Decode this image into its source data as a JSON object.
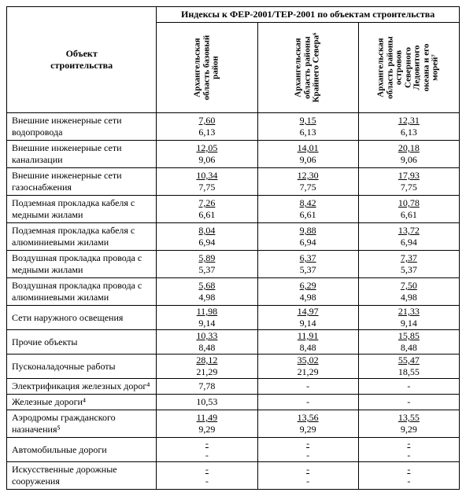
{
  "header": {
    "object_col": "Объект\nстроительства",
    "index_header": "Индексы к ФЕР-2001/ТЕР-2001 по объектам строительства",
    "cols": [
      "Архангельская\nобласть базовый\nрайон",
      "Архангельская\nобласть районы\nКрайнего Севера⁶",
      "Архангельская\nобласть районы\nостровов\nСеверного\nЛедовитого\nокеана и его\nморей⁷"
    ]
  },
  "rows": [
    {
      "name": "Внешние инженерные сети водопровода",
      "v": [
        [
          "7,60",
          "6,13"
        ],
        [
          "9,15",
          "6,13"
        ],
        [
          "12,31",
          "6,13"
        ]
      ]
    },
    {
      "name": "Внешние инженерные сети канализации",
      "v": [
        [
          "12,05",
          "9,06"
        ],
        [
          "14,01",
          "9,06"
        ],
        [
          "20,18",
          "9,06"
        ]
      ]
    },
    {
      "name": "Внешние инженерные сети газоснабжения",
      "v": [
        [
          "10,34",
          "7,75"
        ],
        [
          "12,30",
          "7,75"
        ],
        [
          "17,93",
          "7,75"
        ]
      ]
    },
    {
      "name": "Подземная прокладка кабеля с медными жилами",
      "v": [
        [
          "7,26",
          "6,61"
        ],
        [
          "8,42",
          "6,61"
        ],
        [
          "10,78",
          "6,61"
        ]
      ]
    },
    {
      "name": "Подземная прокладка кабеля с алюминиевыми жилами",
      "v": [
        [
          "8,04",
          "6,94"
        ],
        [
          "9,88",
          "6,94"
        ],
        [
          "13,72",
          "6,94"
        ]
      ]
    },
    {
      "name": "Воздушная прокладка провода с медными жилами",
      "v": [
        [
          "5,89",
          "5,37"
        ],
        [
          "6,37",
          "5,37"
        ],
        [
          "7,37",
          "5,37"
        ]
      ]
    },
    {
      "name": "Воздушная прокладка провода с алюминиевыми жилами",
      "v": [
        [
          "5,68",
          "4,98"
        ],
        [
          "6,29",
          "4,98"
        ],
        [
          "7,50",
          "4,98"
        ]
      ]
    },
    {
      "name": "Сети наружного освещения",
      "v": [
        [
          "11,98",
          "9,14"
        ],
        [
          "14,97",
          "9,14"
        ],
        [
          "21,33",
          "9,14"
        ]
      ]
    },
    {
      "name": "Прочие объекты",
      "v": [
        [
          "10,33",
          "8,48"
        ],
        [
          "11,91",
          "8,48"
        ],
        [
          "15,85",
          "8,48"
        ]
      ]
    },
    {
      "name": "Пусконаладочные работы",
      "v": [
        [
          "28,12",
          "21,29"
        ],
        [
          "35,02",
          "21,29"
        ],
        [
          "55,47",
          "18,55"
        ]
      ]
    },
    {
      "name": "Электрификация железных дорог⁴",
      "v": [
        [
          "7,78",
          ""
        ],
        [
          "-",
          ""
        ],
        [
          "-",
          ""
        ]
      ]
    },
    {
      "name": "Железные дороги⁴",
      "v": [
        [
          "10,53",
          ""
        ],
        [
          "-",
          ""
        ],
        [
          "-",
          ""
        ]
      ]
    },
    {
      "name": "Аэродромы гражданского назначения⁵",
      "v": [
        [
          "11,49",
          "9,29"
        ],
        [
          "13,56",
          "9,29"
        ],
        [
          "13,55",
          "9,29"
        ]
      ]
    },
    {
      "name": "Автомобильные дороги",
      "v": [
        [
          "-",
          "-"
        ],
        [
          "-",
          "-"
        ],
        [
          "-",
          "-"
        ]
      ]
    },
    {
      "name": "Искусственные дорожные сооружения",
      "v": [
        [
          "-",
          "-"
        ],
        [
          "-",
          "-"
        ],
        [
          "-",
          "-"
        ]
      ]
    }
  ]
}
